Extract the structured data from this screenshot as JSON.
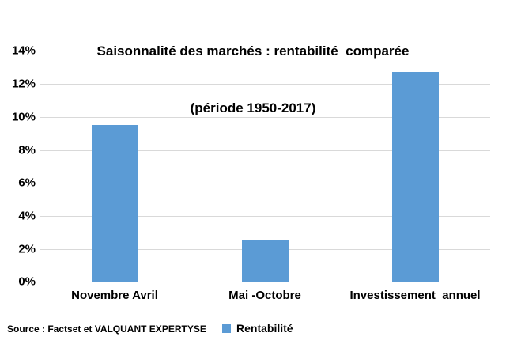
{
  "title": {
    "line1": "Saisonnalité des marchés : rentabilité  comparée",
    "line2": "(période 1950-2017)"
  },
  "source": "Source : Factset et VALQUANT EXPERTYSE",
  "legend": {
    "label": "Rentabilité",
    "marker_color": "#5B9BD5"
  },
  "chart_data": {
    "type": "bar",
    "title": "Saisonnalité des marchés : rentabilité comparée (période 1950-2017)",
    "categories": [
      "Novembre Avril",
      "Mai -Octobre",
      "Investissement  annuel"
    ],
    "values": [
      9.5,
      2.6,
      12.7
    ],
    "series_name": "Rentabilité",
    "xlabel": "",
    "ylabel": "",
    "ylim": [
      0,
      14
    ],
    "ytick_step": 2,
    "ytick_labels": [
      "0%",
      "2%",
      "4%",
      "6%",
      "8%",
      "10%",
      "12%",
      "14%"
    ],
    "grid": true,
    "legend_position": "bottom",
    "bar_color": "#5B9BD5",
    "gridline_color": "#D9D9D9",
    "axis_color": "#BFBFBF"
  }
}
